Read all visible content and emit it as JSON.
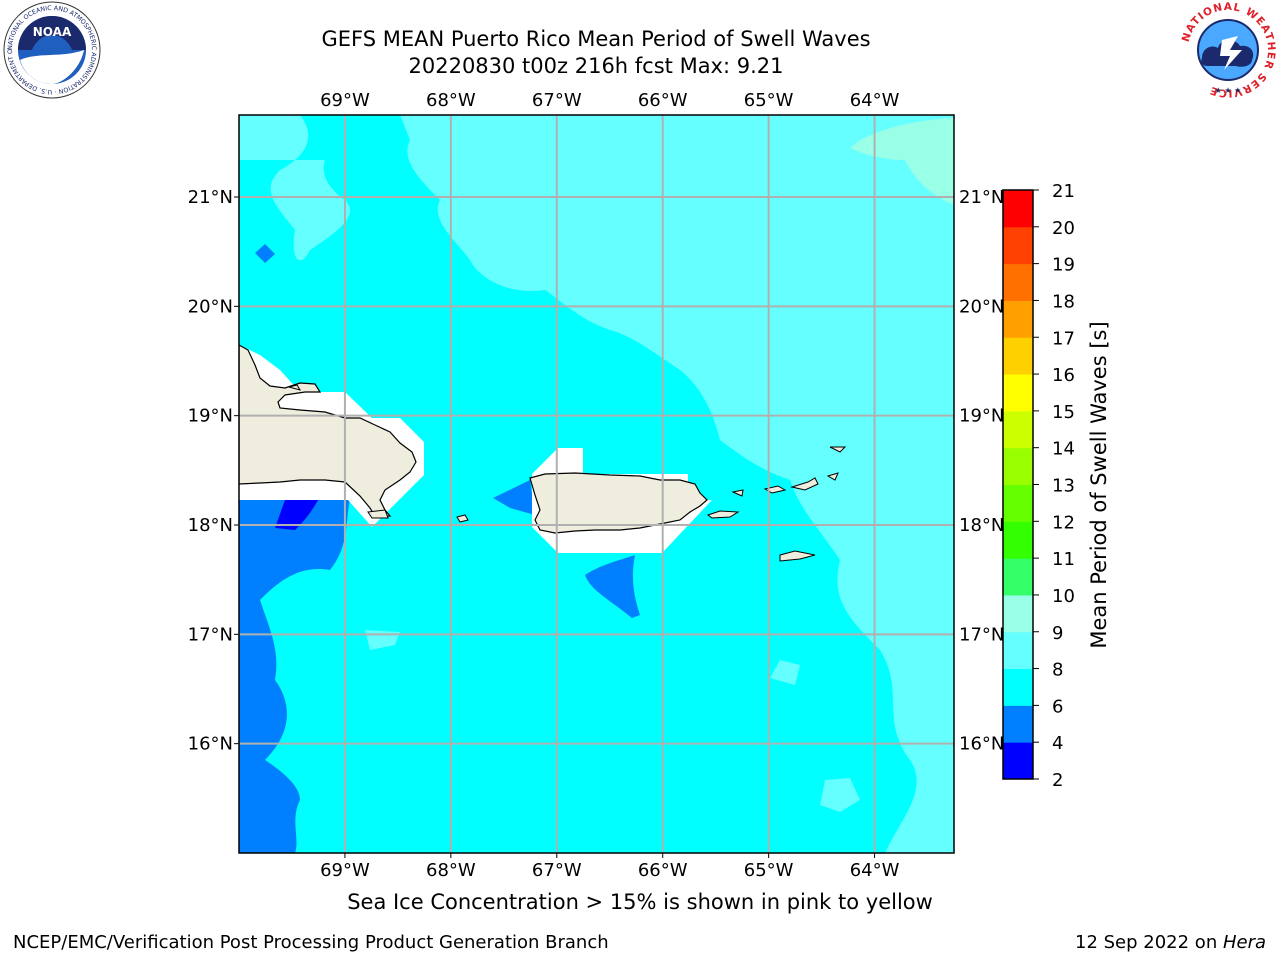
{
  "title": {
    "line1": "GEFS MEAN Puerto Rico Mean Period of Swell Waves",
    "line2": "20220830 t00z 216h fcst   Max: 9.21"
  },
  "logos": {
    "left": {
      "name": "noaa-logo",
      "text": "NOAA",
      "ring_text": "NATIONAL OCEANIC AND ATMOSPHERIC ADMINISTRATION · U.S. DEPARTMENT OF COMMERCE"
    },
    "right": {
      "name": "nws-logo",
      "ring_text": "NATIONAL WEATHER SERVICE"
    }
  },
  "map": {
    "lon_range": [
      -70,
      -63.25
    ],
    "lat_range": [
      15,
      21.75
    ],
    "lon_ticks": [
      {
        "value": -69,
        "label": "69°W"
      },
      {
        "value": -68,
        "label": "68°W"
      },
      {
        "value": -67,
        "label": "67°W"
      },
      {
        "value": -66,
        "label": "66°W"
      },
      {
        "value": -65,
        "label": "65°W"
      },
      {
        "value": -64,
        "label": "64°W"
      }
    ],
    "lat_ticks": [
      {
        "value": 21,
        "label": "21°N"
      },
      {
        "value": 20,
        "label": "20°N"
      },
      {
        "value": 19,
        "label": "19°N"
      },
      {
        "value": 18,
        "label": "18°N"
      },
      {
        "value": 17,
        "label": "17°N"
      },
      {
        "value": 16,
        "label": "16°N"
      }
    ],
    "colors": {
      "ocean_main": "#00ffff",
      "ocean_light": "#66ffff",
      "ocean_pale": "#99ffe6",
      "ocean_dark": "#0080ff",
      "ocean_darkest": "#0000ff",
      "land": "#efedde",
      "grid": "#b0b0b0"
    }
  },
  "colorbar": {
    "label": "Mean Period of Swell Waves [s]",
    "ticks": [
      "2",
      "4",
      "6",
      "8",
      "9",
      "10",
      "11",
      "12",
      "13",
      "14",
      "15",
      "16",
      "17",
      "18",
      "19",
      "20",
      "21"
    ],
    "colors": [
      "#0000ff",
      "#0080ff",
      "#00ffff",
      "#66ffff",
      "#99ffe6",
      "#33ff66",
      "#33ff00",
      "#66ff00",
      "#99ff00",
      "#ccff00",
      "#ffff00",
      "#ffd000",
      "#ffa000",
      "#ff7000",
      "#ff4000",
      "#ff0000"
    ]
  },
  "caption": "Sea Ice Concentration > 15% is shown in pink to yellow",
  "footer": {
    "left": "NCEP/EMC/Verification Post Processing Product Generation Branch",
    "right_prefix": "12 Sep 2022 on ",
    "right_host": "Hera"
  }
}
